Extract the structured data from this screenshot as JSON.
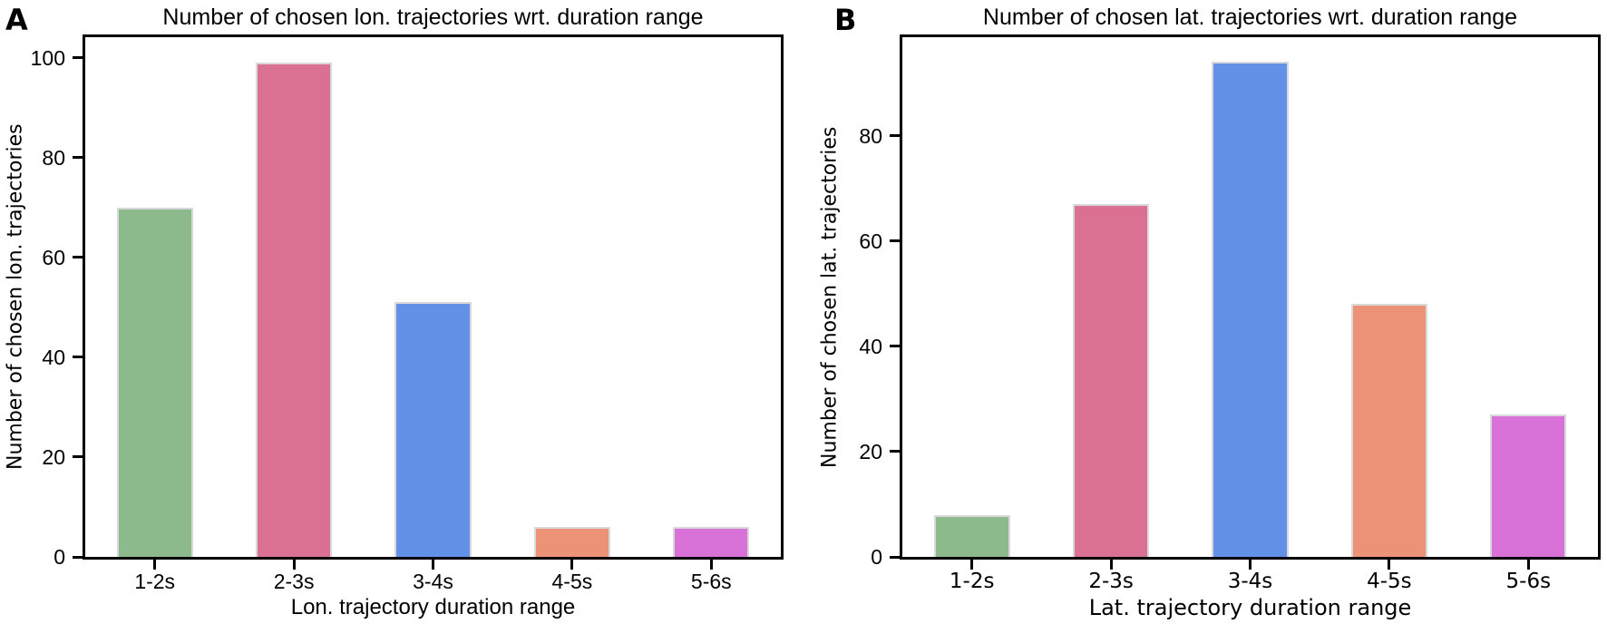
{
  "figure": {
    "background": "#ffffff",
    "panels": [
      {
        "letter": "A"
      },
      {
        "letter": "B"
      }
    ]
  },
  "chart_data": [
    {
      "type": "bar",
      "panel_label": "A",
      "title": "Number of chosen lon. trajectories wrt. duration range",
      "xlabel": "Lon. trajectory duration range",
      "ylabel": "Number of chosen lon. trajectories",
      "categories": [
        "1-2s",
        "2-3s",
        "3-4s",
        "4-5s",
        "5-6s"
      ],
      "values": [
        70,
        99,
        51,
        6,
        6
      ],
      "yticks": [
        0,
        20,
        40,
        60,
        80,
        100
      ],
      "ylim": [
        0,
        104.1
      ],
      "bar_colors": [
        "#8cba8c",
        "#da7092",
        "#6491e8",
        "#ec9277",
        "#d872d8"
      ],
      "bar_edge_color": "#d9d9d9",
      "grid": false,
      "legend": false
    },
    {
      "type": "bar",
      "panel_label": "B",
      "title": "Number of chosen lat. trajectories wrt. duration range",
      "xlabel": "Lat. trajectory duration range",
      "ylabel": "Number of chosen lat. trajectories",
      "categories": [
        "1-2s",
        "2-3s",
        "3-4s",
        "4-5s",
        "5-6s"
      ],
      "values": [
        8,
        67,
        94,
        48,
        27
      ],
      "yticks": [
        0,
        20,
        40,
        60,
        80
      ],
      "ylim": [
        0,
        98.7
      ],
      "bar_colors": [
        "#8cba8c",
        "#da7092",
        "#6491e8",
        "#ec9277",
        "#d872d8"
      ],
      "bar_edge_color": "#d9d9d9",
      "grid": false,
      "legend": false
    }
  ]
}
